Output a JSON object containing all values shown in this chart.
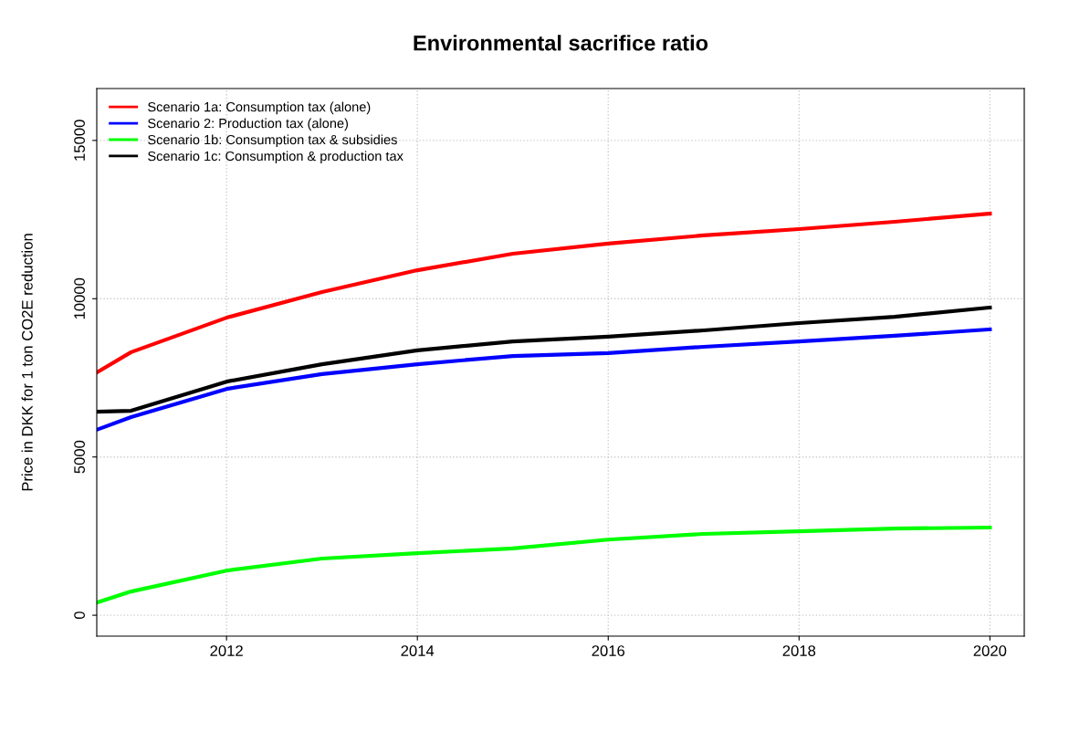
{
  "chart_data": {
    "type": "line",
    "title": "Environmental sacrifice ratio",
    "ylabel": "Price in DKK for 1 ton CO2E reduction",
    "x": [
      2010.64,
      2011,
      2012,
      2013,
      2014,
      2015,
      2016,
      2017,
      2018,
      2019,
      2020
    ],
    "series": [
      {
        "name": "Scenario 1a: Consumption tax (alone)",
        "color": "#ff0000",
        "values": [
          7670,
          8310,
          9400,
          10210,
          10900,
          11420,
          11740,
          12000,
          12200,
          12430,
          12690
        ]
      },
      {
        "name": "Scenario 2: Production tax (alone)",
        "color": "#0000ff",
        "values": [
          5860,
          6260,
          7150,
          7620,
          7930,
          8190,
          8280,
          8480,
          8650,
          8830,
          9030
        ]
      },
      {
        "name": "Scenario 1b: Consumption tax & subsidies",
        "color": "#00ff00",
        "values": [
          400,
          750,
          1410,
          1790,
          1960,
          2110,
          2390,
          2570,
          2650,
          2740,
          2770
        ]
      },
      {
        "name": "Scenario 1c: Consumption & production tax",
        "color": "#000000",
        "values": [
          6430,
          6460,
          7380,
          7930,
          8370,
          8650,
          8800,
          9000,
          9230,
          9430,
          9720
        ]
      }
    ],
    "xlim": [
      2010.64,
      2020.36
    ],
    "ylim": [
      -660,
      16640
    ],
    "xticks": [
      2012,
      2014,
      2016,
      2018,
      2020
    ],
    "yticks": [
      0,
      5000,
      10000,
      15000
    ],
    "grid": true,
    "legend": "top left",
    "marker": "none",
    "line_style": "solid"
  }
}
